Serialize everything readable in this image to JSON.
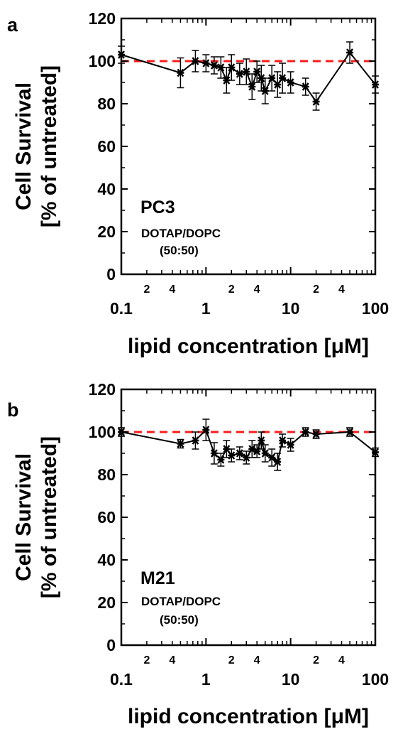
{
  "chart_data": [
    {
      "type": "line",
      "panel_label": "a",
      "ylabel_line1": "Cell Survival",
      "ylabel_line2": "[% of untreated]",
      "xlabel": "lipid concentration [μM]",
      "x_scale": "log",
      "xlim": [
        0.1,
        100
      ],
      "ylim": [
        0,
        120
      ],
      "y_ticks": [
        "0",
        "20",
        "40",
        "60",
        "80",
        "100",
        "120"
      ],
      "x_major_ticks": [
        "0.1",
        "1",
        "10",
        "100"
      ],
      "x_minor_tick_labels": [
        "2",
        "4",
        "2",
        "4",
        "2",
        "4"
      ],
      "reference_line": {
        "y": 100,
        "color": "#ff1a1a",
        "style": "dashed"
      },
      "annotation": {
        "name": "PC3",
        "formulation": "DOTAP/DOPC",
        "ratio": "(50:50)"
      },
      "series": [
        {
          "color": "#000000",
          "x": [
            0.1,
            0.5,
            0.75,
            1.0,
            1.25,
            1.5,
            1.75,
            2.0,
            2.5,
            3.0,
            3.5,
            4.0,
            4.5,
            5.0,
            6.0,
            7.0,
            8.0,
            10.0,
            15.0,
            20.0,
            50.0,
            100.0
          ],
          "y": [
            103,
            94.5,
            100,
            99,
            98,
            97,
            91,
            97,
            94,
            95,
            88,
            95,
            92,
            86,
            92,
            89,
            92,
            90,
            88,
            81,
            104,
            89
          ],
          "err": [
            4,
            7,
            5,
            4,
            4,
            5,
            6,
            6,
            5,
            6,
            6,
            5,
            6,
            6,
            6,
            6,
            7,
            5,
            4,
            4,
            5,
            4
          ]
        }
      ]
    },
    {
      "type": "line",
      "panel_label": "b",
      "ylabel_line1": "Cell Survival",
      "ylabel_line2": "[% of untreated]",
      "xlabel": "lipid concentration [μM]",
      "x_scale": "log",
      "xlim": [
        0.1,
        100
      ],
      "ylim": [
        0,
        120
      ],
      "y_ticks": [
        "0",
        "20",
        "40",
        "60",
        "80",
        "100",
        "120"
      ],
      "x_major_ticks": [
        "0.1",
        "1",
        "10",
        "100"
      ],
      "x_minor_tick_labels": [
        "2",
        "4",
        "2",
        "4",
        "2",
        "4"
      ],
      "reference_line": {
        "y": 100,
        "color": "#ff1a1a",
        "style": "dashed"
      },
      "annotation": {
        "name": "M21",
        "formulation": "DOTAP/DOPC",
        "ratio": "(50:50)"
      },
      "series": [
        {
          "color": "#000000",
          "x": [
            0.1,
            0.5,
            0.75,
            1.0,
            1.25,
            1.5,
            1.75,
            2.0,
            2.5,
            3.0,
            3.5,
            4.0,
            4.5,
            5.0,
            6.0,
            7.0,
            8.0,
            10.0,
            15.0,
            20.0,
            50.0,
            100.0
          ],
          "y": [
            100,
            94.5,
            96,
            101,
            90,
            87,
            92,
            89,
            90,
            88,
            92,
            91,
            96,
            90,
            88,
            86,
            96,
            94,
            100,
            99,
            100,
            90.5
          ],
          "err": [
            2,
            2,
            4,
            5,
            5,
            3,
            4,
            3,
            3,
            3,
            4,
            3,
            4,
            4,
            4,
            4,
            3,
            3,
            2,
            2,
            2,
            2
          ]
        }
      ]
    }
  ]
}
